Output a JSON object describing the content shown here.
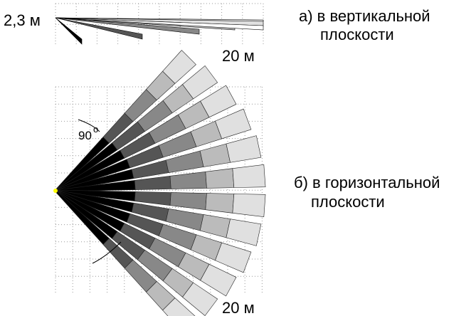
{
  "vertical": {
    "height_label": "2,3 м",
    "distance_label": "20 м",
    "caption": {
      "line1": "а) в вертикальной",
      "line2": "плоскости"
    }
  },
  "horizontal": {
    "angle_label": "90",
    "angle_unit": "o",
    "distance_label": "20 м",
    "caption": {
      "line1": "б) в горизонтальной",
      "line2": "плоскости"
    }
  }
}
